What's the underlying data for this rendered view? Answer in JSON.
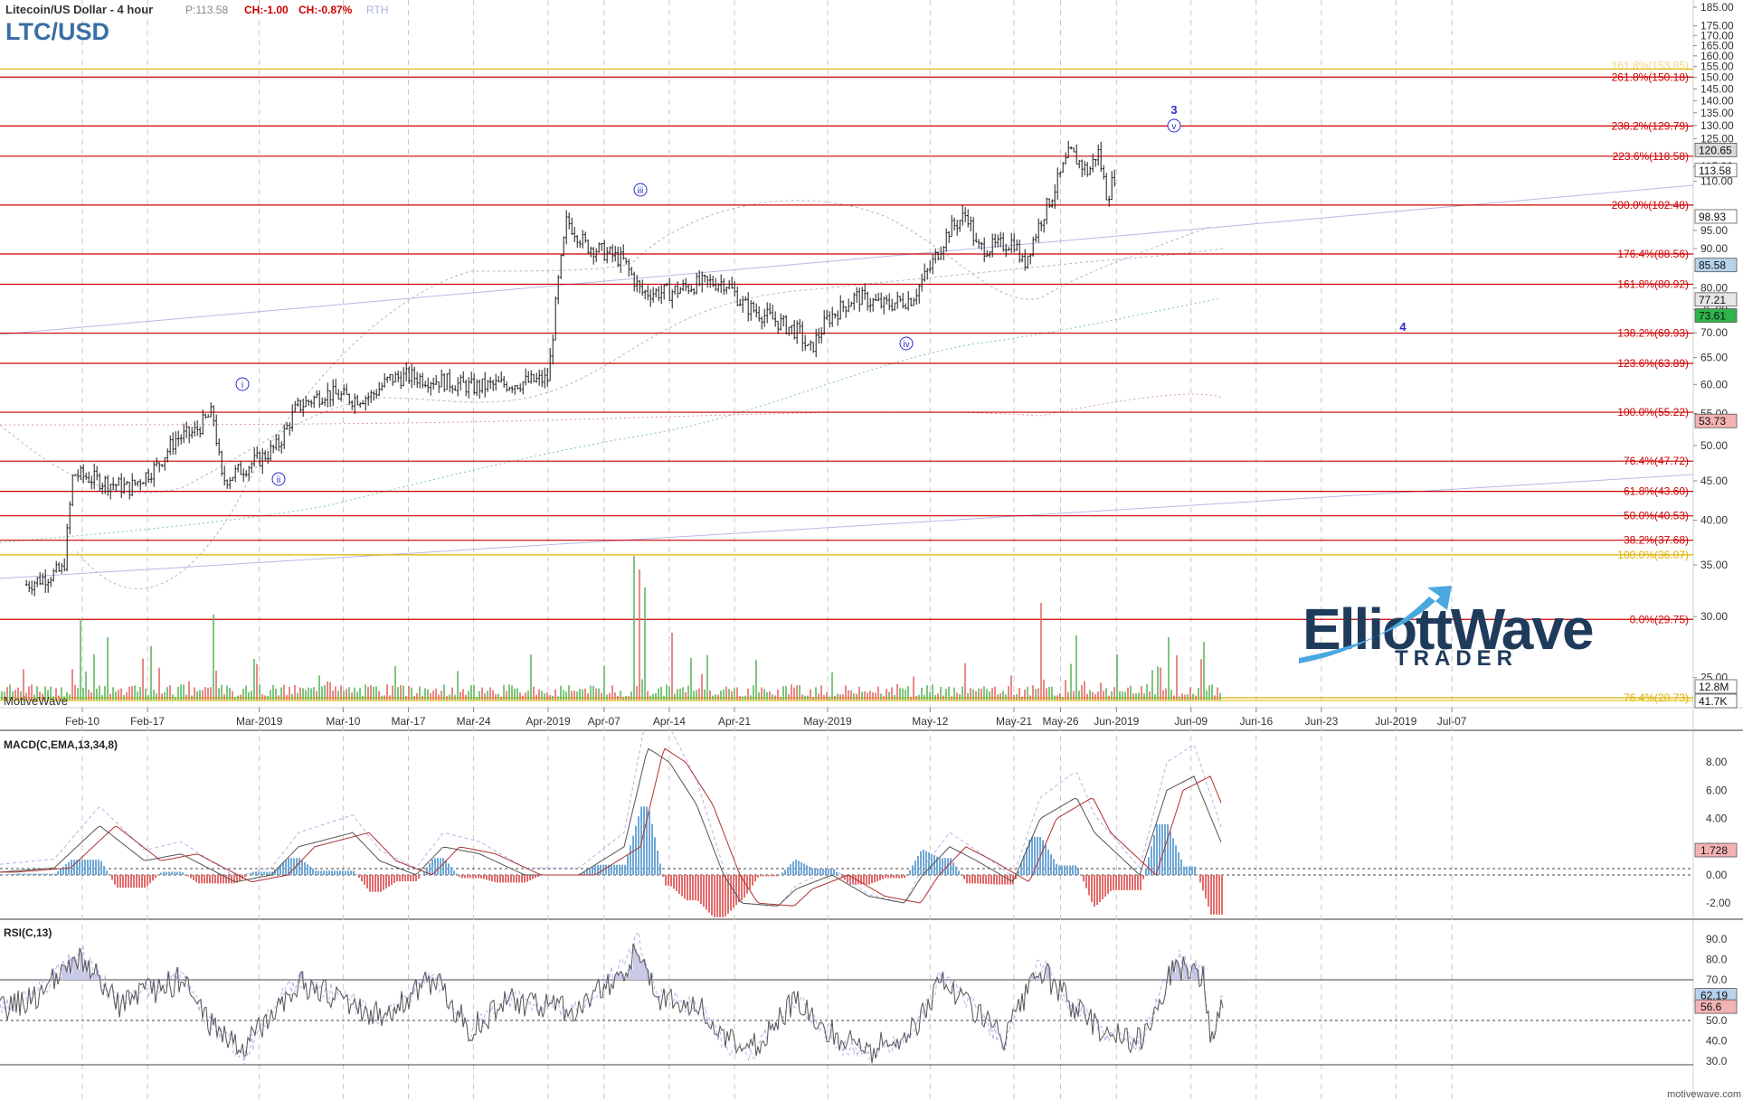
{
  "header": {
    "instrument": "Litecoin/US Dollar - 4 hour",
    "price": "P:113.58",
    "change": "CH:-1.00",
    "change_pct": "CH:-0.87%",
    "session": "RTH",
    "symbol": "LTC/USD"
  },
  "watermark": {
    "left": "MotiveWave",
    "bottom_right": "motivewave.com"
  },
  "logo": {
    "line1": "ElliottWave",
    "line2": "TRADER"
  },
  "x_axis": {
    "labels": [
      "Feb-10",
      "Feb-17",
      "Mar-2019",
      "Mar-10",
      "Mar-17",
      "Mar-24",
      "Apr-2019",
      "Apr-07",
      "Apr-14",
      "Apr-21",
      "May-2019",
      "May-12",
      "May-21",
      "May-26",
      "Jun-2019",
      "Jun-09",
      "Jun-16",
      "Jun-23",
      "Jul-2019",
      "Jul-07"
    ]
  },
  "price_axis": {
    "ticks": [
      "185.00",
      "175.00",
      "170.00",
      "165.00",
      "160.00",
      "155.00",
      "150.00",
      "145.00",
      "140.00",
      "135.00",
      "130.00",
      "125.00",
      "115.00",
      "110.00",
      "95.00",
      "90.00",
      "80.00",
      "75.00",
      "70.00",
      "65.00",
      "60.00",
      "55.00",
      "50.00",
      "45.00",
      "40.00",
      "35.00",
      "30.00",
      "25.00"
    ],
    "markers": [
      {
        "label": "120.65",
        "color": "#d9d9d9"
      },
      {
        "label": "113.58",
        "color": "#ffffff"
      },
      {
        "label": "98.93",
        "color": "#ffffff"
      },
      {
        "label": "85.58",
        "color": "#b7d3ec"
      },
      {
        "label": "77.21",
        "color": "#e6e6e6"
      },
      {
        "label": "73.61",
        "color": "#2fb34a"
      },
      {
        "label": "53.73",
        "color": "#f3b3b3"
      },
      {
        "label": "12.8M",
        "color": "#ffffff"
      },
      {
        "label": "41.7K",
        "color": "#ffffff"
      }
    ]
  },
  "fib_levels": [
    {
      "label": "161.8%(153.85)",
      "color": "#e0b000"
    },
    {
      "label": "261.8%(150.18)",
      "color": "#cc0000"
    },
    {
      "label": "238.2%(129.79)",
      "color": "#cc0000"
    },
    {
      "label": "223.6%(118.58)",
      "color": "#cc0000"
    },
    {
      "label": "200.0%(102.48)",
      "color": "#cc0000"
    },
    {
      "label": "176.4%(88.56)",
      "color": "#cc0000"
    },
    {
      "label": "161.8%(80.92)",
      "color": "#cc0000"
    },
    {
      "label": "138.2%(69.93)",
      "color": "#cc0000"
    },
    {
      "label": "123.6%(63.89)",
      "color": "#cc0000"
    },
    {
      "label": "100.0%(55.22)",
      "color": "#cc0000"
    },
    {
      "label": "76.4%(47.72)",
      "color": "#cc0000"
    },
    {
      "label": "61.8%(43.60)",
      "color": "#cc0000"
    },
    {
      "label": "50.0%(40.53)",
      "color": "#cc0000"
    },
    {
      "label": "38.2%(37.68)",
      "color": "#cc0000"
    },
    {
      "label": "100.0%(36.07)",
      "color": "#e0b000"
    },
    {
      "label": "0.0%(29.75)",
      "color": "#cc0000"
    },
    {
      "label": "76.4%(20.73)",
      "color": "#e0b000"
    }
  ],
  "wave_labels": [
    {
      "text": "i",
      "circled": true
    },
    {
      "text": "ii",
      "circled": true
    },
    {
      "text": "iii",
      "circled": true
    },
    {
      "text": "iv",
      "circled": true
    },
    {
      "text": "v",
      "circled": true
    },
    {
      "text": "3",
      "circled": false
    },
    {
      "text": "4",
      "circled": false
    }
  ],
  "macd": {
    "title": "MACD(C,EMA,13,34,8)",
    "ticks": [
      "8.00",
      "6.00",
      "4.00",
      "2.00",
      "0.00",
      "-2.00"
    ],
    "marker": "1.728"
  },
  "rsi": {
    "title": "RSI(C,13)",
    "ticks": [
      "90.0",
      "80.0",
      "70.0",
      "60.0",
      "50.0",
      "40.0",
      "30.0"
    ],
    "markers": [
      "62.19",
      "56.6"
    ]
  },
  "chart_data": {
    "type": "line",
    "title": "LTC/USD",
    "xlabel": "",
    "ylabel": "",
    "scale": "log",
    "grid": true,
    "x_range": [
      "Feb-10",
      "Jul-07"
    ],
    "y_range": [
      25,
      185
    ],
    "series": [
      {
        "points": [
          [
            "Feb-04",
            33.0
          ],
          [
            "Feb-08",
            34.5
          ],
          [
            "Feb-09",
            46.0
          ],
          [
            "Feb-12",
            45.0
          ],
          [
            "Feb-15",
            44.0
          ],
          [
            "Feb-18",
            47.0
          ],
          [
            "Feb-20",
            51.0
          ],
          [
            "Feb-22",
            52.0
          ],
          [
            "Feb-24",
            55.2
          ],
          [
            "Feb-25",
            45.0
          ],
          [
            "Feb-27",
            46.5
          ],
          [
            "Mar-01",
            48.0
          ],
          [
            "Mar-03",
            50.0
          ],
          [
            "Mar-05",
            56.0
          ],
          [
            "Mar-08",
            58.5
          ],
          [
            "Mar-11",
            57.5
          ],
          [
            "Mar-13",
            58.0
          ],
          [
            "Mar-15",
            61.0
          ],
          [
            "Mar-17",
            61.5
          ],
          [
            "Mar-21",
            60.5
          ],
          [
            "Mar-24",
            59.5
          ],
          [
            "Mar-27",
            60.0
          ],
          [
            "Mar-30",
            60.5
          ],
          [
            "Apr-01",
            61.0
          ],
          [
            "Apr-02",
            80.0
          ],
          [
            "Apr-03",
            98.0
          ],
          [
            "Apr-05",
            91.0
          ],
          [
            "Apr-07",
            89.0
          ],
          [
            "Apr-09",
            87.0
          ],
          [
            "Apr-11",
            79.0
          ],
          [
            "Apr-14",
            79.0
          ],
          [
            "Apr-17",
            81.0
          ],
          [
            "Apr-20",
            81.5
          ],
          [
            "Apr-22",
            76.0
          ],
          [
            "Apr-25",
            73.0
          ],
          [
            "Apr-28",
            70.0
          ],
          [
            "Apr-29",
            66.0
          ],
          [
            "May-01",
            73.0
          ],
          [
            "May-04",
            78.0
          ],
          [
            "May-07",
            76.0
          ],
          [
            "May-10",
            77.5
          ],
          [
            "May-12",
            85.0
          ],
          [
            "May-14",
            95.0
          ],
          [
            "May-16",
            100.0
          ],
          [
            "May-17",
            90.0
          ],
          [
            "May-19",
            90.5
          ],
          [
            "May-21",
            92.0
          ],
          [
            "May-22",
            85.5
          ],
          [
            "May-24",
            98.9
          ],
          [
            "May-25",
            105.0
          ],
          [
            "May-27",
            120.0
          ],
          [
            "May-29",
            113.0
          ],
          [
            "May-30",
            120.6
          ],
          [
            "May-31",
            105.0
          ],
          [
            "Jun-01",
            113.6
          ]
        ]
      }
    ]
  }
}
